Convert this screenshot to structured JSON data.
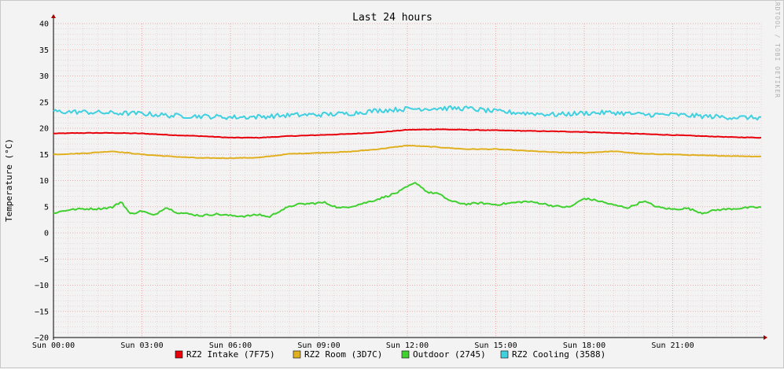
{
  "chart_data": {
    "type": "line",
    "title": "Last 24 hours",
    "ylabel": "Temperature (°C)",
    "xlabel": "",
    "watermark": "RRDTOOL / TOBI OETIKER",
    "ylim": [
      -20,
      40
    ],
    "y_ticks": [
      -20,
      -15,
      -10,
      -5,
      0,
      5,
      10,
      15,
      20,
      25,
      30,
      35,
      40
    ],
    "y_tick_labels": [
      "−20",
      "−15",
      "−10",
      "−5",
      "0",
      "5",
      "10",
      "15",
      "20",
      "25",
      "30",
      "35",
      "40"
    ],
    "x_hours": [
      0,
      3,
      6,
      9,
      12,
      15,
      18,
      21
    ],
    "x_tick_labels": [
      "Sun 00:00",
      "Sun 03:00",
      "Sun 06:00",
      "Sun 09:00",
      "Sun 12:00",
      "Sun 15:00",
      "Sun 18:00",
      "Sun 21:00"
    ],
    "xlim_hours": [
      0,
      24
    ],
    "grid": true,
    "legend_position": "bottom",
    "series": [
      {
        "name": "RZ2 Intake (7F75)",
        "color": "#e8000b",
        "hours": [
          0,
          1,
          2,
          3,
          4,
          5,
          6,
          7,
          8,
          9,
          10,
          11,
          12,
          13,
          14,
          15,
          16,
          17,
          18,
          19,
          20,
          21,
          22,
          23,
          24
        ],
        "values": [
          19.0,
          19.1,
          19.1,
          19.0,
          18.7,
          18.5,
          18.2,
          18.2,
          18.5,
          18.7,
          18.9,
          19.2,
          19.7,
          19.8,
          19.7,
          19.6,
          19.5,
          19.4,
          19.3,
          19.1,
          18.9,
          18.7,
          18.5,
          18.3,
          18.2
        ]
      },
      {
        "name": "RZ2 Room (3D7C)",
        "color": "#e0b020",
        "hours": [
          0,
          1,
          2,
          3,
          4,
          5,
          6,
          7,
          8,
          9,
          10,
          11,
          12,
          13,
          14,
          15,
          16,
          17,
          18,
          19,
          20,
          21,
          22,
          23,
          24
        ],
        "values": [
          15.0,
          15.2,
          15.6,
          15.0,
          14.6,
          14.3,
          14.3,
          14.4,
          15.1,
          15.3,
          15.5,
          16.0,
          16.7,
          16.4,
          16.0,
          16.0,
          15.7,
          15.4,
          15.3,
          15.6,
          15.1,
          15.0,
          14.8,
          14.7,
          14.6
        ]
      },
      {
        "name": "Outdoor (2745)",
        "color": "#40d030",
        "hours": [
          0,
          0.5,
          1,
          1.5,
          2,
          2.3,
          2.6,
          3,
          3.4,
          3.8,
          4.2,
          4.6,
          5,
          5.5,
          6,
          6.5,
          7,
          7.3,
          7.7,
          8.2,
          8.7,
          9.2,
          9.7,
          10.2,
          10.8,
          11.3,
          11.7,
          12.0,
          12.3,
          12.7,
          13.0,
          13.5,
          14.0,
          14.5,
          15.0,
          15.5,
          16.0,
          16.5,
          17.0,
          17.5,
          18.0,
          18.5,
          19.0,
          19.5,
          20.0,
          20.5,
          21.0,
          21.5,
          22.0,
          22.5,
          23.0,
          23.5,
          24.0
        ],
        "values": [
          3.8,
          4.4,
          4.6,
          4.6,
          4.9,
          6.0,
          3.6,
          4.2,
          3.3,
          4.9,
          3.9,
          3.6,
          3.3,
          3.6,
          3.3,
          3.2,
          3.5,
          3.0,
          4.3,
          5.4,
          5.6,
          5.8,
          4.7,
          5.2,
          6.1,
          7.0,
          7.8,
          8.8,
          9.6,
          7.7,
          7.6,
          6.0,
          5.5,
          5.7,
          5.4,
          5.7,
          6.0,
          5.7,
          5.1,
          4.9,
          6.6,
          6.1,
          5.3,
          4.8,
          6.1,
          4.9,
          4.5,
          4.7,
          3.8,
          4.4,
          4.6,
          4.8,
          4.9
        ]
      },
      {
        "name": "RZ2 Cooling (3588)",
        "color": "#40d0e0",
        "hours": [
          0,
          1,
          2,
          3,
          4,
          5,
          6,
          7,
          8,
          9,
          10,
          11,
          12,
          13,
          14,
          15,
          16,
          17,
          18,
          19,
          20,
          21,
          22,
          23,
          24
        ],
        "values": [
          23.2,
          23.1,
          22.9,
          22.8,
          22.4,
          22.3,
          22.1,
          22.2,
          22.5,
          22.6,
          22.8,
          23.4,
          23.7,
          23.8,
          23.8,
          23.2,
          22.9,
          22.6,
          22.9,
          23.0,
          22.6,
          22.6,
          22.3,
          22.1,
          22.0
        ]
      }
    ]
  }
}
